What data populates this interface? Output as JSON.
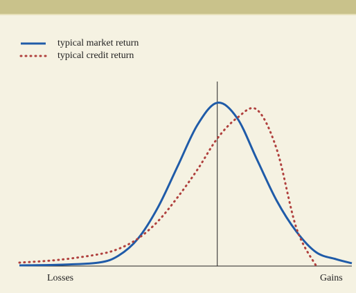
{
  "chart_data": {
    "type": "line",
    "x": [
      -100,
      -80,
      -60,
      -50,
      -40,
      -30,
      -20,
      -10,
      0,
      10,
      20,
      30,
      40,
      50,
      60,
      68
    ],
    "series": [
      {
        "name": "typical market return",
        "color": "#1f5ba8",
        "style": "solid",
        "values": [
          0.4,
          0.8,
          2.1,
          6.3,
          16.9,
          35.9,
          61.2,
          86.5,
          100,
          90.7,
          65.4,
          40.1,
          21.1,
          8.4,
          4.2,
          1.7
        ]
      },
      {
        "name": "typical credit return",
        "color": "#b0413e",
        "style": "dotted",
        "values": [
          2.1,
          3.8,
          7.2,
          10.5,
          16.9,
          27.4,
          42.2,
          59.1,
          78.1,
          90.7,
          95.8,
          71.7,
          23.2,
          0,
          null,
          null
        ]
      }
    ],
    "xlim": [
      -100,
      68
    ],
    "ylim": [
      0,
      113
    ],
    "vline": 0,
    "xlabel_left": "Losses",
    "xlabel_right": "Gains"
  }
}
